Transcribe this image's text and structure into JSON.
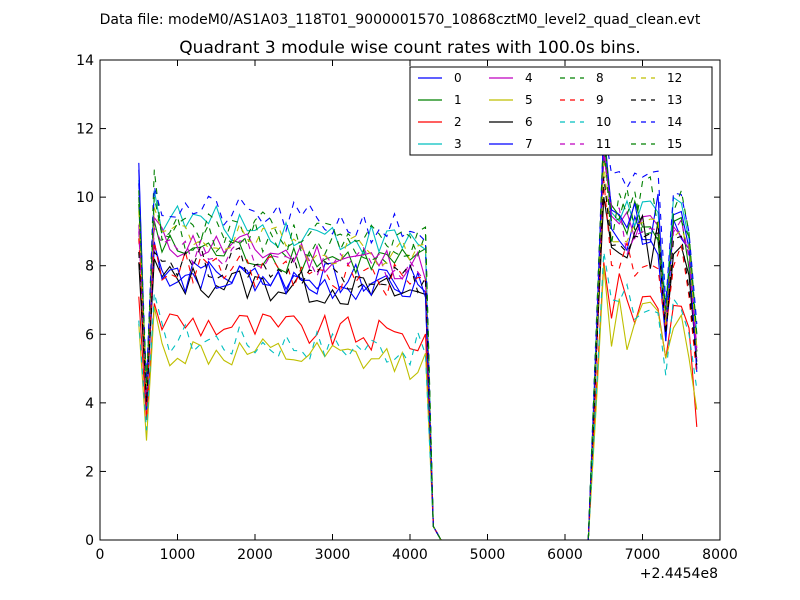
{
  "suptitle": "Data file: modeM0/AS1A03_118T01_9000001570_10868cztM0_level2_quad_clean.evt",
  "chart_data": {
    "type": "line",
    "title": "Quadrant 3 module wise count rates with 100.0s bins.",
    "xlabel": "",
    "ylabel": "",
    "x_offset_label": "+2.4454e8",
    "xlim": [
      0,
      8000
    ],
    "ylim": [
      0,
      14
    ],
    "xticks": [
      "0",
      "1000",
      "2000",
      "3000",
      "4000",
      "5000",
      "6000",
      "7000",
      "8000"
    ],
    "yticks": [
      "0",
      "2",
      "4",
      "6",
      "8",
      "10",
      "12",
      "14"
    ],
    "grid": false,
    "legend_position": "top-right",
    "x": [
      500,
      600,
      700,
      800,
      900,
      1000,
      1100,
      1200,
      1300,
      1400,
      1500,
      1600,
      1700,
      1800,
      1900,
      2000,
      2100,
      2200,
      2300,
      2400,
      2500,
      2600,
      2700,
      2800,
      2900,
      3000,
      3100,
      3200,
      3300,
      3400,
      3500,
      3600,
      3700,
      3800,
      3900,
      4000,
      4100,
      4200,
      4300,
      4400,
      4500,
      4600,
      4700,
      4800,
      4900,
      5000,
      5100,
      5200,
      5300,
      5400,
      5500,
      5600,
      5700,
      5800,
      5900,
      6000,
      6100,
      6200,
      6300,
      6400,
      6500,
      6600,
      6700,
      6800,
      6900,
      7000,
      7100,
      7200,
      7300,
      7400,
      7500,
      7600,
      7700
    ],
    "series": [
      {
        "name": "0",
        "color": "#0000ff",
        "dash": false,
        "base": 7.8,
        "start": 11.0,
        "dip": 3.9,
        "peak": 8.6,
        "end_level": 7.2,
        "late_base": 9.0,
        "late_peak": 12.0,
        "late_dip": 5.8,
        "late_end": 5.0
      },
      {
        "name": "1",
        "color": "#008000",
        "dash": false,
        "base": 8.5,
        "start": 9.8,
        "dip": 4.5,
        "peak": 9.3,
        "end_level": 7.6,
        "late_base": 9.2,
        "late_peak": 11.2,
        "late_dip": 6.3,
        "late_end": 5.5
      },
      {
        "name": "2",
        "color": "#ff0000",
        "dash": false,
        "base": 6.4,
        "start": 7.1,
        "dip": 3.5,
        "peak": 6.9,
        "end_level": 5.3,
        "late_base": 7.0,
        "late_peak": 8.1,
        "late_dip": 5.3,
        "late_end": 3.3
      },
      {
        "name": "3",
        "color": "#00bfbf",
        "dash": false,
        "base": 9.4,
        "start": 10.5,
        "dip": 4.0,
        "peak": 10.2,
        "end_level": 7.8,
        "late_base": 9.6,
        "late_peak": 11.8,
        "late_dip": 6.8,
        "late_end": 6.0
      },
      {
        "name": "4",
        "color": "#bf00bf",
        "dash": false,
        "base": 8.7,
        "start": 9.2,
        "dip": 4.2,
        "peak": 9.4,
        "end_level": 7.3,
        "late_base": 9.0,
        "late_peak": 11.5,
        "late_dip": 6.5,
        "late_end": 5.6
      },
      {
        "name": "5",
        "color": "#bfbf00",
        "dash": false,
        "base": 5.5,
        "start": 6.3,
        "dip": 2.9,
        "peak": 6.8,
        "end_level": 4.8,
        "late_base": 6.3,
        "late_peak": 8.0,
        "late_dip": 5.3,
        "late_end": 3.8
      },
      {
        "name": "6",
        "color": "#000000",
        "dash": false,
        "base": 7.6,
        "start": 8.1,
        "dip": 4.0,
        "peak": 8.2,
        "end_level": 6.7,
        "late_base": 8.7,
        "late_peak": 10.0,
        "late_dip": 6.0,
        "late_end": 5.2
      },
      {
        "name": "7",
        "color": "#0000ff",
        "dash": false,
        "base": 7.7,
        "start": 10.8,
        "dip": 3.8,
        "peak": 8.7,
        "end_level": 7.0,
        "late_base": 9.3,
        "late_peak": 12.0,
        "late_dip": 5.8,
        "late_end": 4.9
      },
      {
        "name": "8",
        "color": "#008000",
        "dash": true,
        "base": 9.0,
        "start": 10.2,
        "dip": 4.3,
        "peak": 10.8,
        "end_level": 8.0,
        "late_base": 9.4,
        "late_peak": 11.8,
        "late_dip": 6.4,
        "late_end": 5.5
      },
      {
        "name": "9",
        "color": "#ff0000",
        "dash": true,
        "base": 8.0,
        "start": 8.8,
        "dip": 3.9,
        "peak": 8.7,
        "end_level": 7.0,
        "late_base": 8.3,
        "late_peak": 10.5,
        "late_dip": 6.1,
        "late_end": 4.8
      },
      {
        "name": "10",
        "color": "#00bfbf",
        "dash": true,
        "base": 5.9,
        "start": 6.4,
        "dip": 3.2,
        "peak": 7.2,
        "end_level": 5.2,
        "late_base": 6.8,
        "late_peak": 8.4,
        "late_dip": 4.8,
        "late_end": 4.4
      },
      {
        "name": "11",
        "color": "#bf00bf",
        "dash": true,
        "base": 8.4,
        "start": 9.0,
        "dip": 4.1,
        "peak": 9.1,
        "end_level": 7.5,
        "late_base": 9.0,
        "late_peak": 11.2,
        "late_dip": 6.3,
        "late_end": 5.3
      },
      {
        "name": "12",
        "color": "#bfbf00",
        "dash": true,
        "base": 8.9,
        "start": 9.6,
        "dip": 4.4,
        "peak": 9.7,
        "end_level": 7.8,
        "late_base": 9.1,
        "late_peak": 11.0,
        "late_dip": 6.3,
        "late_end": 5.6
      },
      {
        "name": "13",
        "color": "#000000",
        "dash": true,
        "base": 8.2,
        "start": 8.4,
        "dip": 4.0,
        "peak": 8.4,
        "end_level": 7.1,
        "late_base": 8.5,
        "late_peak": 10.6,
        "late_dip": 6.0,
        "late_end": 5.1
      },
      {
        "name": "14",
        "color": "#0000ff",
        "dash": true,
        "base": 9.7,
        "start": 10.4,
        "dip": 4.6,
        "peak": 10.3,
        "end_level": 8.3,
        "late_base": 10.1,
        "late_peak": 12.1,
        "late_dip": 6.9,
        "late_end": 6.3
      },
      {
        "name": "15",
        "color": "#008000",
        "dash": true,
        "base": 9.3,
        "start": 10.0,
        "dip": 4.5,
        "peak": 10.0,
        "end_level": 8.1,
        "late_base": 9.8,
        "late_peak": 12.1,
        "late_dip": 6.7,
        "late_end": 6.0
      }
    ]
  }
}
